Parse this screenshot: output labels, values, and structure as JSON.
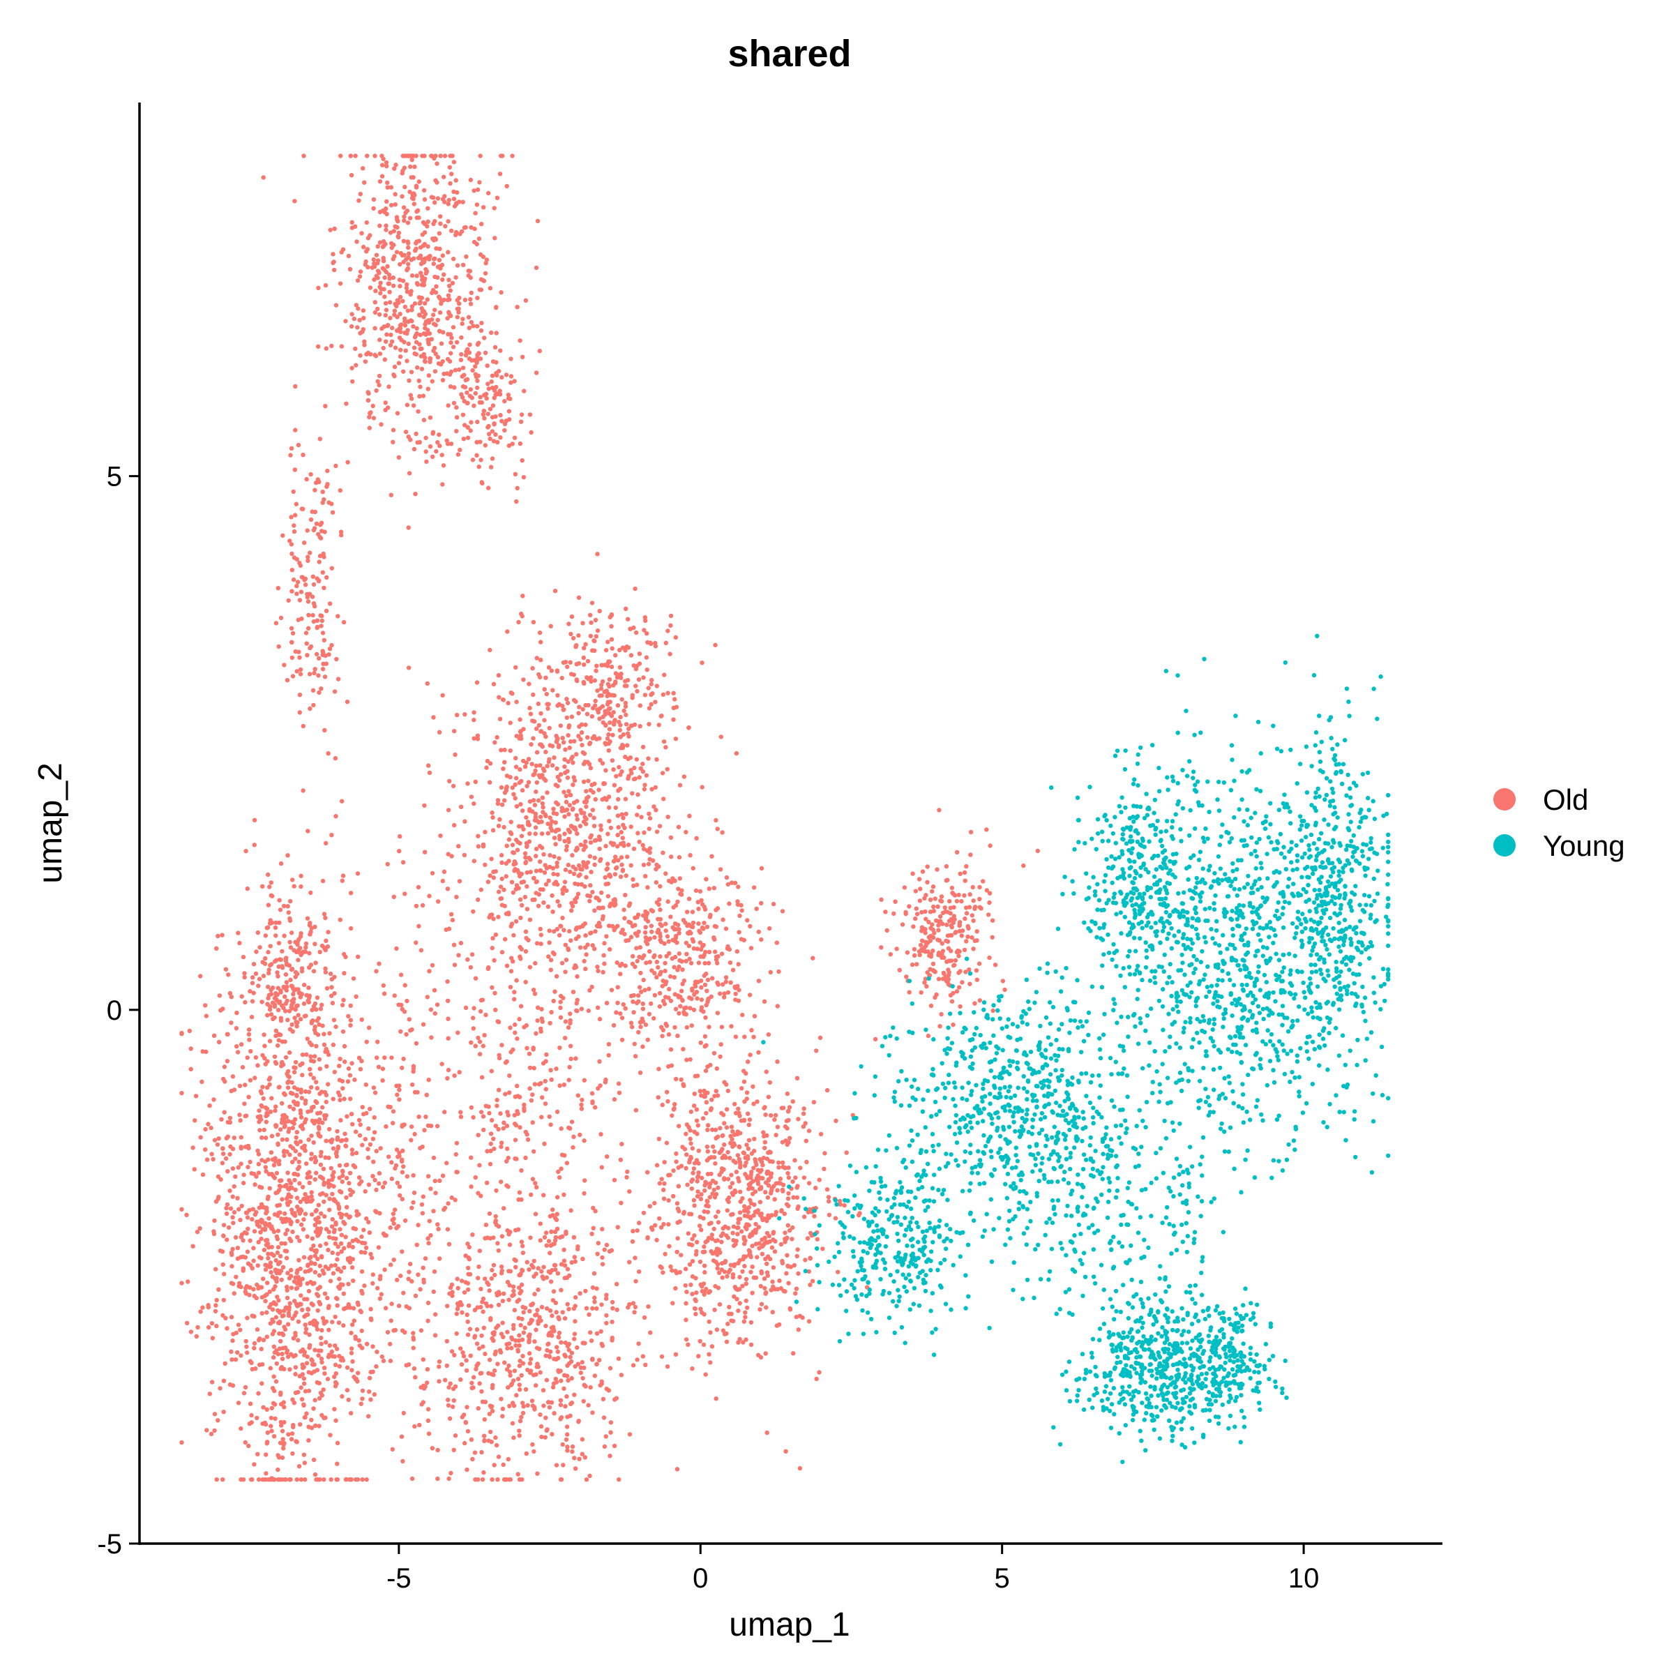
{
  "chart_data": {
    "type": "scatter",
    "title": "shared",
    "xlabel": "umap_1",
    "ylabel": "umap_2",
    "xlim": [
      -9.3,
      12.3
    ],
    "ylim": [
      -5.0,
      8.5
    ],
    "xticks": [
      -5,
      0,
      5,
      10
    ],
    "yticks": [
      -5,
      0,
      5
    ],
    "grid": false,
    "legend": {
      "placement": "right"
    },
    "series": [
      {
        "name": "Old",
        "color": "#F8766D",
        "clusters": [
          {
            "cx": -4.7,
            "cy": 6.7,
            "sx": 0.85,
            "sy": 1.0,
            "n": 700
          },
          {
            "cx": -3.5,
            "cy": 5.6,
            "sx": 0.45,
            "sy": 0.45,
            "n": 120
          },
          {
            "cx": -6.4,
            "cy": 4.1,
            "sx": 0.3,
            "sy": 1.0,
            "n": 170
          },
          {
            "cx": -2.3,
            "cy": 1.6,
            "sx": 1.25,
            "sy": 1.2,
            "n": 900
          },
          {
            "cx": -1.5,
            "cy": 3.0,
            "sx": 0.7,
            "sy": 0.55,
            "n": 250
          },
          {
            "cx": -0.2,
            "cy": 0.5,
            "sx": 0.9,
            "sy": 0.6,
            "n": 350
          },
          {
            "cx": -6.7,
            "cy": -2.0,
            "sx": 1.0,
            "sy": 1.7,
            "n": 1500
          },
          {
            "cx": -6.8,
            "cy": 0.3,
            "sx": 0.5,
            "sy": 0.6,
            "n": 200
          },
          {
            "cx": -2.9,
            "cy": -3.1,
            "sx": 1.2,
            "sy": 0.9,
            "n": 650
          },
          {
            "cx": 0.6,
            "cy": -1.8,
            "sx": 1.0,
            "sy": 0.9,
            "n": 800
          },
          {
            "cx": -3.0,
            "cy": -0.9,
            "sx": 1.3,
            "sy": 1.0,
            "n": 250
          },
          {
            "cx": 4.0,
            "cy": 0.7,
            "sx": 0.55,
            "sy": 0.5,
            "n": 250
          },
          {
            "cx": -5.0,
            "cy": -1.5,
            "sx": 0.5,
            "sy": 1.5,
            "n": 120
          }
        ]
      },
      {
        "name": "Young",
        "color": "#00BFC4",
        "clusters": [
          {
            "cx": 8.9,
            "cy": 0.5,
            "sx": 1.4,
            "sy": 1.2,
            "n": 1000
          },
          {
            "cx": 10.6,
            "cy": 1.1,
            "sx": 0.55,
            "sy": 1.0,
            "n": 350
          },
          {
            "cx": 5.2,
            "cy": -0.9,
            "sx": 1.3,
            "sy": 0.7,
            "n": 650
          },
          {
            "cx": 7.3,
            "cy": 1.2,
            "sx": 0.7,
            "sy": 0.6,
            "n": 300
          },
          {
            "cx": 7.6,
            "cy": -3.3,
            "sx": 0.9,
            "sy": 0.45,
            "n": 550
          },
          {
            "cx": 8.8,
            "cy": -3.3,
            "sx": 0.45,
            "sy": 0.35,
            "n": 150
          },
          {
            "cx": 3.2,
            "cy": -2.2,
            "sx": 0.8,
            "sy": 0.5,
            "n": 300
          },
          {
            "cx": 6.8,
            "cy": -1.9,
            "sx": 1.2,
            "sy": 0.6,
            "n": 200
          }
        ]
      }
    ]
  }
}
